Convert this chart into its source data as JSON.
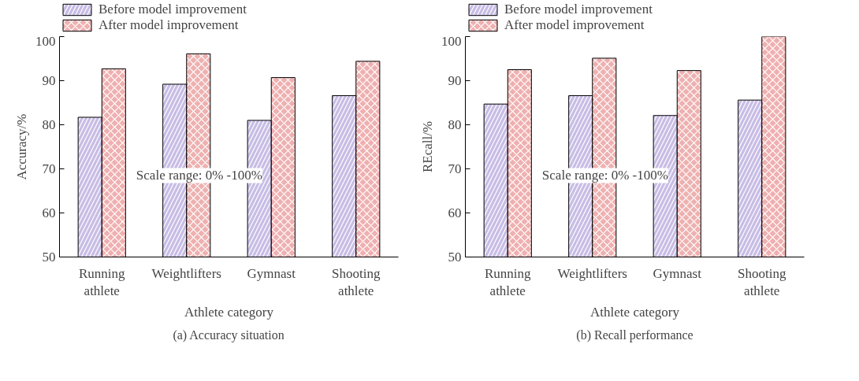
{
  "chart_data": [
    {
      "type": "bar",
      "title": "(a) Accuracy situation",
      "xlabel": "Athlete category",
      "ylabel": "Accuracy/%",
      "categories": [
        "Running\nathlete",
        "Weightlifters",
        "Gymnast",
        "Shooting\nathlete"
      ],
      "series": [
        {
          "name": "Before model improvement",
          "color": "#9a86d0",
          "values": [
            81.7,
            89.2,
            81.0,
            86.6
          ]
        },
        {
          "name": "After model improvement",
          "color": "#e07070",
          "values": [
            92.7,
            96.1,
            90.7,
            94.4
          ]
        }
      ],
      "ylim": [
        50,
        100
      ],
      "yticks": [
        50,
        60,
        70,
        80,
        90,
        100
      ],
      "grid": false,
      "legend": "top left",
      "annotations": [
        "Scale range: 0% -100%"
      ]
    },
    {
      "type": "bar",
      "title": "(b) Recall performance",
      "xlabel": "Athlete category",
      "ylabel": "REcall/%",
      "categories": [
        "Running\nathlete",
        "Weightlifters",
        "Gymnast",
        "Shooting\nathlete"
      ],
      "series": [
        {
          "name": "Before model improvement",
          "color": "#9a86d0",
          "values": [
            84.7,
            86.6,
            82.1,
            85.6
          ]
        },
        {
          "name": "After model improvement",
          "color": "#e07070",
          "values": [
            92.5,
            95.1,
            92.3,
            100
          ]
        }
      ],
      "ylim": [
        50,
        100
      ],
      "yticks": [
        50,
        60,
        70,
        80,
        90,
        100
      ],
      "grid": false,
      "legend": "top left",
      "annotations": [
        "Scale range: 0% -100%"
      ]
    }
  ]
}
